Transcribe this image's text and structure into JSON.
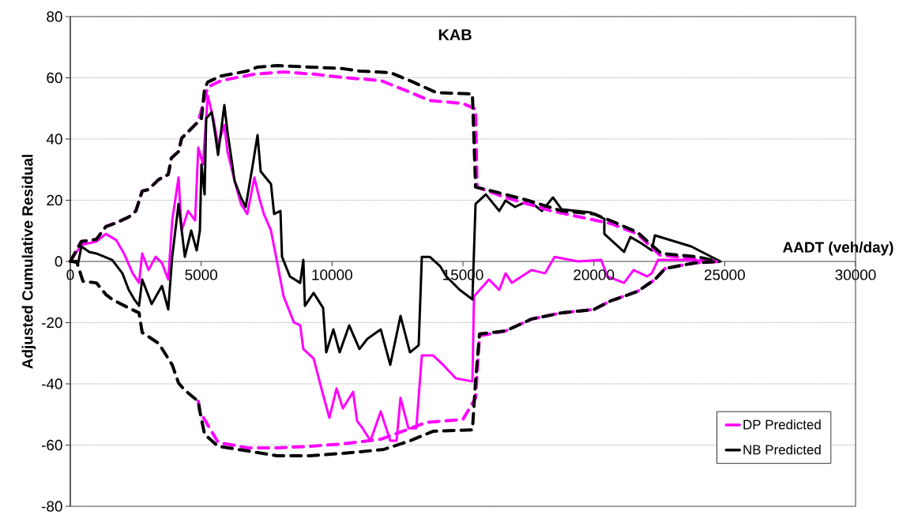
{
  "chart_data": {
    "type": "line",
    "title": "KAB",
    "xlabel": "AADT (veh/day)",
    "ylabel": "Adjusted Cumulative Residual",
    "xlim": [
      0,
      30000
    ],
    "ylim": [
      -80,
      80
    ],
    "xticks": [
      0,
      5000,
      10000,
      15000,
      20000,
      25000,
      30000
    ],
    "yticks": [
      -80,
      -60,
      -40,
      -20,
      0,
      20,
      40,
      60,
      80
    ],
    "grid": "y",
    "legend": "bottom right",
    "series": [
      {
        "name": "DP Predicted",
        "color": "#ff00ff",
        "line_style": "solid",
        "x": [
          0,
          423,
          996,
          1358,
          1750,
          2052,
          2384,
          2626,
          2746,
          2988,
          3259,
          3501,
          3742,
          3893,
          4135,
          4255,
          4497,
          4768,
          4889,
          5070,
          5251,
          5463,
          5644,
          5885,
          6006,
          6277,
          6519,
          6760,
          7032,
          7213,
          7394,
          7666,
          7907,
          8149,
          8541,
          8782,
          8903,
          9295,
          9658,
          9899,
          10171,
          10412,
          10804,
          10955,
          11167,
          11468,
          11861,
          12223,
          12464,
          12615,
          12917,
          13219,
          13430,
          13853,
          14245,
          14728,
          15362,
          15422,
          15995,
          16388,
          16629,
          16871,
          17625,
          18138,
          18500,
          19406,
          20281,
          20522,
          21156,
          21518,
          22031,
          22212,
          22454,
          23480,
          24778
        ],
        "values": [
          0,
          5.4,
          6.5,
          9.0,
          7.0,
          2.6,
          -3.9,
          -7.0,
          2.6,
          -2.8,
          1.5,
          -0.5,
          -5.9,
          13.4,
          27.4,
          10.1,
          16.5,
          13.4,
          37.2,
          31.7,
          54.2,
          46.7,
          38.2,
          44.6,
          35.9,
          26.3,
          18.8,
          15.5,
          27.4,
          20.9,
          15.5,
          10.1,
          -0.5,
          -11.4,
          -19.9,
          -20.9,
          -28.6,
          -31.7,
          -43.6,
          -51.1,
          -41.5,
          -48.0,
          -42.6,
          -52.1,
          -54.5,
          -58.6,
          -49.0,
          -58.6,
          -58.6,
          -44.6,
          -54.5,
          -54.5,
          -30.7,
          -30.7,
          -33.8,
          -38.2,
          -39.2,
          -11.4,
          -5.9,
          -9.3,
          -3.9,
          -7.0,
          -2.8,
          -3.9,
          1.5,
          0,
          0.5,
          -4.9,
          -7.0,
          -2.8,
          -4.9,
          -3.9,
          0.5,
          0.5,
          0
        ]
      },
      {
        "name": "NB Predicted",
        "color": "#000000",
        "line_style": "solid",
        "x": [
          0,
          302,
          423,
          724,
          996,
          1600,
          1992,
          2233,
          2445,
          2626,
          2746,
          3109,
          3501,
          3742,
          3893,
          4135,
          4376,
          4618,
          4829,
          4950,
          5010,
          5131,
          5191,
          5402,
          5523,
          5644,
          5885,
          6006,
          6277,
          6519,
          6700,
          6972,
          7153,
          7273,
          7666,
          7786,
          8028,
          8088,
          8390,
          8782,
          8903,
          8963,
          9295,
          9658,
          9778,
          10050,
          10291,
          10654,
          11046,
          11348,
          11861,
          12223,
          12615,
          12977,
          13309,
          13430,
          13732,
          14124,
          14366,
          14879,
          15362,
          15482,
          15875,
          16388,
          16629,
          16991,
          17504,
          18017,
          18440,
          18772,
          19889,
          20402,
          20402,
          21156,
          21398,
          21820,
          22212,
          22333,
          23721,
          24838
        ],
        "values": [
          0,
          -0.5,
          4.9,
          3.1,
          2.6,
          0.5,
          -3.9,
          -9.3,
          -12.4,
          -14.5,
          -5.9,
          -13.9,
          -8.0,
          -15.7,
          1.5,
          18.8,
          1.5,
          10.1,
          3.6,
          10.1,
          31.7,
          21.9,
          46.7,
          48.8,
          42.3,
          34.8,
          51.1,
          42.3,
          26.3,
          20.9,
          17.8,
          31.7,
          41.3,
          29.4,
          25.3,
          15.5,
          16.5,
          1.5,
          -4.9,
          -7.0,
          0.5,
          -14.5,
          -10.3,
          -15.2,
          -29.7,
          -22.2,
          -29.7,
          -20.9,
          -28.6,
          -25.3,
          -22.2,
          -33.8,
          -17.8,
          -29.7,
          -27.4,
          1.5,
          1.5,
          -1.5,
          -4.9,
          -9.3,
          -12.4,
          18.8,
          21.9,
          16.5,
          19.9,
          17.8,
          19.9,
          16.5,
          20.9,
          17.0,
          16.0,
          13.9,
          9.0,
          3.1,
          8.0,
          5.9,
          3.6,
          8.5,
          4.9,
          0
        ]
      },
      {
        "color": "#ff00ff",
        "line_style": "dashed",
        "x": [
          0,
          423,
          996,
          1358,
          1690,
          2233,
          2505,
          2746,
          2988,
          3380,
          3742,
          3863,
          4135,
          4255,
          4497,
          4889,
          5131,
          5251,
          5764,
          7032,
          8149,
          9295,
          10412,
          11861,
          12857,
          13732,
          14999,
          15482,
          15540,
          16629,
          18380,
          20643,
          21669,
          22514,
          24355,
          24778
        ],
        "values": [
          0,
          6.5,
          7.2,
          11.4,
          12.4,
          14.5,
          16.5,
          23.0,
          23.5,
          26.8,
          28.4,
          33.8,
          35.9,
          40.3,
          42.3,
          45.7,
          53.2,
          57.0,
          59.1,
          61.2,
          61.9,
          61.2,
          60.1,
          59.1,
          55.7,
          52.6,
          51.6,
          49.8,
          24.3,
          20.9,
          16.5,
          12.4,
          9.0,
          2.1,
          0.5,
          0
        ]
      },
      {
        "color": "#000000",
        "line_style": "dashed",
        "x": [
          0,
          423,
          996,
          1358,
          1690,
          2233,
          2505,
          2746,
          2988,
          3380,
          3742,
          3863,
          4135,
          4255,
          4497,
          4889,
          5010,
          5131,
          5251,
          5764,
          6760,
          7153,
          7907,
          9145,
          10412,
          11046,
          12223,
          13098,
          13973,
          15362,
          15482,
          16116,
          17504,
          18772,
          20009,
          20764,
          21669,
          22575,
          23963,
          24778
        ],
        "values": [
          0,
          6.5,
          7.2,
          11.4,
          12.4,
          14.5,
          16.5,
          23.0,
          23.5,
          26.8,
          28.4,
          33.8,
          35.9,
          40.3,
          42.3,
          45.7,
          46.7,
          56.5,
          58.6,
          60.6,
          62.2,
          63.5,
          64.0,
          63.5,
          63.0,
          62.2,
          61.7,
          58.6,
          55.2,
          54.7,
          24.3,
          23.0,
          19.9,
          16.5,
          15.5,
          12.9,
          9.5,
          2.6,
          1.5,
          0
        ]
      },
      {
        "color": "#ff00ff",
        "line_style": "dashed",
        "x": [
          4889,
          4950,
          5644,
          6760,
          7907,
          9145,
          10412,
          11861,
          13611,
          14999,
          15482,
          15633,
          16629,
          17625,
          18772,
          20009,
          20643,
          21669,
          22333,
          22726,
          23842,
          24778
        ],
        "values": [
          -45.7,
          -49.0,
          -59.1,
          -60.9,
          -60.9,
          -60.4,
          -59.6,
          -58.1,
          -52.6,
          -51.6,
          -44.6,
          -24.3,
          -22.7,
          -18.8,
          -16.8,
          -15.7,
          -12.9,
          -9.8,
          -5.9,
          -2.3,
          -0.5,
          0
        ]
      },
      {
        "color": "#000000",
        "line_style": "dashed",
        "x": [
          0,
          241,
          483,
          996,
          1358,
          1600,
          2233,
          2626,
          2746,
          3380,
          3893,
          4135,
          4376,
          4889,
          4950,
          5131,
          5644,
          6760,
          7907,
          9145,
          10412,
          11046,
          11981,
          12977,
          13853,
          15362,
          15482,
          15633,
          16629,
          17625,
          18772,
          20009,
          20643,
          21669,
          22333,
          22726,
          23842,
          24778
        ],
        "values": [
          0,
          0,
          -6.5,
          -7.0,
          -10.8,
          -12.4,
          -15.2,
          -16.8,
          -23.2,
          -26.8,
          -33.8,
          -39.7,
          -42.1,
          -45.7,
          -49.0,
          -56.5,
          -60.4,
          -61.9,
          -63.5,
          -63.5,
          -62.7,
          -62.2,
          -61.4,
          -58.6,
          -55.5,
          -55.0,
          -39.2,
          -23.7,
          -22.7,
          -18.8,
          -16.8,
          -15.7,
          -12.9,
          -9.8,
          -5.9,
          -2.3,
          -0.5,
          0
        ]
      }
    ]
  }
}
